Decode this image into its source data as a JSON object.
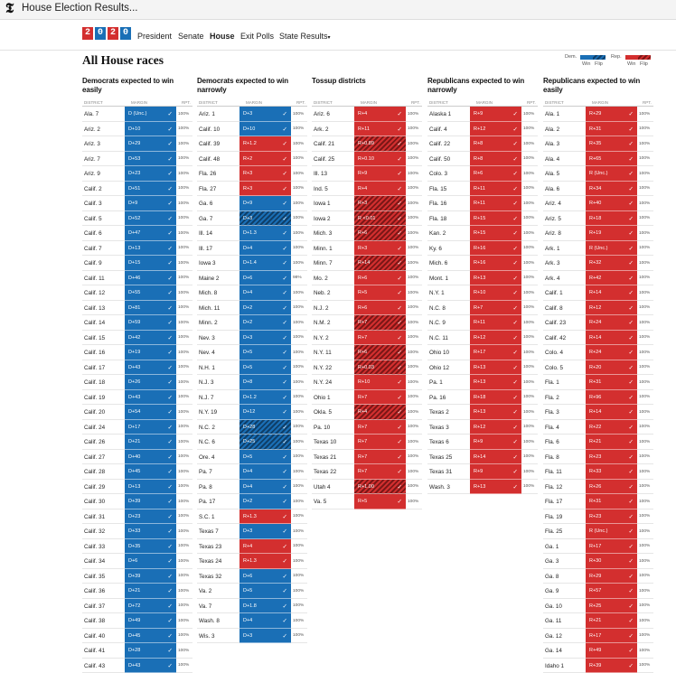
{
  "tab": {
    "title": "House Election Results..."
  },
  "logo": {
    "letters": [
      "2",
      "0",
      "2",
      "0"
    ],
    "colors": [
      "#d32f2f",
      "#1a6fb6",
      "#d32f2f",
      "#1a6fb6"
    ]
  },
  "nav": {
    "items": [
      {
        "label": "President",
        "active": false
      },
      {
        "label": "Senate",
        "active": false
      },
      {
        "label": "House",
        "active": true
      },
      {
        "label": "Exit Polls",
        "active": false
      },
      {
        "label": "State Results",
        "active": false,
        "chevron": true
      }
    ]
  },
  "page": {
    "title": "All House races"
  },
  "legend": {
    "dem": "Dem.",
    "rep": "Rep.",
    "win": "Win",
    "flip": "Flip",
    "dem_color": "#1a6fb6",
    "rep_color": "#d32f2f"
  },
  "table_headers": {
    "district": "DISTRICT",
    "margin": "MARGIN",
    "rpt": "RPT."
  },
  "columns": [
    {
      "heading": "Democrats expected to win easily",
      "rows": [
        [
          "Ala. 7",
          "D (Unc.)",
          "D",
          "100%"
        ],
        [
          "Ariz. 2",
          "D+10",
          "D",
          "100%"
        ],
        [
          "Ariz. 3",
          "D+29",
          "D",
          "100%"
        ],
        [
          "Ariz. 7",
          "D+53",
          "D",
          "100%"
        ],
        [
          "Ariz. 9",
          "D+23",
          "D",
          "100%"
        ],
        [
          "Calif. 2",
          "D+51",
          "D",
          "100%"
        ],
        [
          "Calif. 3",
          "D+9",
          "D",
          "100%"
        ],
        [
          "Calif. 5",
          "D+52",
          "D",
          "100%"
        ],
        [
          "Calif. 6",
          "D+47",
          "D",
          "100%"
        ],
        [
          "Calif. 7",
          "D+13",
          "D",
          "100%"
        ],
        [
          "Calif. 9",
          "D+15",
          "D",
          "100%"
        ],
        [
          "Calif. 11",
          "D+46",
          "D",
          "100%"
        ],
        [
          "Calif. 12",
          "D+55",
          "D",
          "100%"
        ],
        [
          "Calif. 13",
          "D+81",
          "D",
          "100%"
        ],
        [
          "Calif. 14",
          "D+59",
          "D",
          "100%"
        ],
        [
          "Calif. 15",
          "D+42",
          "D",
          "100%"
        ],
        [
          "Calif. 16",
          "D+19",
          "D",
          "100%"
        ],
        [
          "Calif. 17",
          "D+43",
          "D",
          "100%"
        ],
        [
          "Calif. 18",
          "D+26",
          "D",
          "100%"
        ],
        [
          "Calif. 19",
          "D+43",
          "D",
          "100%"
        ],
        [
          "Calif. 20",
          "D+54",
          "D",
          "100%"
        ],
        [
          "Calif. 24",
          "D+17",
          "D",
          "100%"
        ],
        [
          "Calif. 26",
          "D+21",
          "D",
          "100%"
        ],
        [
          "Calif. 27",
          "D+40",
          "D",
          "100%"
        ],
        [
          "Calif. 28",
          "D+45",
          "D",
          "100%"
        ],
        [
          "Calif. 29",
          "D+13",
          "D",
          "100%"
        ],
        [
          "Calif. 30",
          "D+39",
          "D",
          "100%"
        ],
        [
          "Calif. 31",
          "D+23",
          "D",
          "100%"
        ],
        [
          "Calif. 32",
          "D+33",
          "D",
          "100%"
        ],
        [
          "Calif. 33",
          "D+35",
          "D",
          "100%"
        ],
        [
          "Calif. 34",
          "D+6",
          "D",
          "100%"
        ],
        [
          "Calif. 35",
          "D+39",
          "D",
          "100%"
        ],
        [
          "Calif. 36",
          "D+21",
          "D",
          "100%"
        ],
        [
          "Calif. 37",
          "D+72",
          "D",
          "100%"
        ],
        [
          "Calif. 38",
          "D+49",
          "D",
          "100%"
        ],
        [
          "Calif. 40",
          "D+45",
          "D",
          "100%"
        ],
        [
          "Calif. 41",
          "D+28",
          "D",
          "100%"
        ],
        [
          "Calif. 43",
          "D+43",
          "D",
          "100%"
        ]
      ]
    },
    {
      "heading": "Democrats expected to win narrowly",
      "rows": [
        [
          "Ariz. 1",
          "D+3",
          "D",
          "100%"
        ],
        [
          "Calif. 10",
          "D+10",
          "D",
          "100%"
        ],
        [
          "Calif. 39",
          "R+1.2",
          "R",
          "100%"
        ],
        [
          "Calif. 48",
          "R+2",
          "R",
          "100%"
        ],
        [
          "Fla. 26",
          "R+3",
          "R",
          "100%"
        ],
        [
          "Fla. 27",
          "R+3",
          "R",
          "100%"
        ],
        [
          "Ga. 6",
          "D+9",
          "D",
          "100%"
        ],
        [
          "Ga. 7",
          "D+3",
          "DF",
          "100%"
        ],
        [
          "Ill. 14",
          "D+1.3",
          "D",
          "100%"
        ],
        [
          "Ill. 17",
          "D+4",
          "D",
          "100%"
        ],
        [
          "Iowa 3",
          "D+1.4",
          "D",
          "100%"
        ],
        [
          "Maine 2",
          "D+6",
          "D",
          "98%"
        ],
        [
          "Mich. 8",
          "D+4",
          "D",
          "100%"
        ],
        [
          "Mich. 11",
          "D+2",
          "D",
          "100%"
        ],
        [
          "Minn. 2",
          "D+2",
          "D",
          "100%"
        ],
        [
          "Nev. 3",
          "D+3",
          "D",
          "100%"
        ],
        [
          "Nev. 4",
          "D+5",
          "D",
          "100%"
        ],
        [
          "N.H. 1",
          "D+5",
          "D",
          "100%"
        ],
        [
          "N.J. 3",
          "D+8",
          "D",
          "100%"
        ],
        [
          "N.J. 7",
          "D+1.2",
          "D",
          "100%"
        ],
        [
          "N.Y. 19",
          "D+12",
          "D",
          "100%"
        ],
        [
          "N.C. 2",
          "D+28",
          "DF",
          "100%"
        ],
        [
          "N.C. 6",
          "D+25",
          "DF",
          "100%"
        ],
        [
          "Ore. 4",
          "D+5",
          "D",
          "100%"
        ],
        [
          "Pa. 7",
          "D+4",
          "D",
          "100%"
        ],
        [
          "Pa. 8",
          "D+4",
          "D",
          "100%"
        ],
        [
          "Pa. 17",
          "D+2",
          "D",
          "100%"
        ],
        [
          "S.C. 1",
          "R+1.3",
          "R",
          "100%"
        ],
        [
          "Texas 7",
          "D+3",
          "D",
          "100%"
        ],
        [
          "Texas 23",
          "R+4",
          "R",
          "100%"
        ],
        [
          "Texas 24",
          "R+1.3",
          "R",
          "100%"
        ],
        [
          "Texas 32",
          "D+6",
          "D",
          "100%"
        ],
        [
          "Va. 2",
          "D+5",
          "D",
          "100%"
        ],
        [
          "Va. 7",
          "D+1.8",
          "D",
          "100%"
        ],
        [
          "Wash. 8",
          "D+4",
          "D",
          "100%"
        ],
        [
          "Wis. 3",
          "D+3",
          "D",
          "100%"
        ]
      ]
    },
    {
      "heading": "Tossup districts",
      "rows": [
        [
          "Ariz. 6",
          "R+4",
          "R",
          "100%"
        ],
        [
          "Ark. 2",
          "R+11",
          "R",
          "100%"
        ],
        [
          "Calif. 21",
          "R+0.89",
          "RF",
          "100%"
        ],
        [
          "Calif. 25",
          "R+0.10",
          "R",
          "100%"
        ],
        [
          "Ill. 13",
          "R+9",
          "R",
          "100%"
        ],
        [
          "Ind. 5",
          "R+4",
          "R",
          "100%"
        ],
        [
          "Iowa 1",
          "R+3",
          "RF",
          "100%"
        ],
        [
          "Iowa 2",
          "R <0.01",
          "RF",
          "100%"
        ],
        [
          "Mich. 3",
          "R+6",
          "RF",
          "100%"
        ],
        [
          "Minn. 1",
          "R+3",
          "R",
          "100%"
        ],
        [
          "Minn. 7",
          "R+14",
          "RF",
          "100%"
        ],
        [
          "Mo. 2",
          "R+6",
          "R",
          "100%"
        ],
        [
          "Neb. 2",
          "R+5",
          "R",
          "100%"
        ],
        [
          "N.J. 2",
          "R+6",
          "R",
          "100%"
        ],
        [
          "N.M. 2",
          "R+7",
          "RF",
          "100%"
        ],
        [
          "N.Y. 2",
          "R+7",
          "R",
          "100%"
        ],
        [
          "N.Y. 11",
          "R+6",
          "RF",
          "100%"
        ],
        [
          "N.Y. 22",
          "R+0.03",
          "RF",
          "100%"
        ],
        [
          "N.Y. 24",
          "R+10",
          "R",
          "100%"
        ],
        [
          "Ohio 1",
          "R+7",
          "R",
          "100%"
        ],
        [
          "Okla. 5",
          "R+4",
          "RF",
          "100%"
        ],
        [
          "Pa. 10",
          "R+7",
          "R",
          "100%"
        ],
        [
          "Texas 10",
          "R+7",
          "R",
          "100%"
        ],
        [
          "Texas 21",
          "R+7",
          "R",
          "100%"
        ],
        [
          "Texas 22",
          "R+7",
          "R",
          "100%"
        ],
        [
          "Utah 4",
          "R+1.00",
          "RF",
          "100%"
        ],
        [
          "Va. 5",
          "R+5",
          "R",
          "100%"
        ]
      ]
    },
    {
      "heading": "Republicans expected to win narrowly",
      "rows": [
        [
          "Alaska 1",
          "R+9",
          "R",
          "100%"
        ],
        [
          "Calif. 4",
          "R+12",
          "R",
          "100%"
        ],
        [
          "Calif. 22",
          "R+8",
          "R",
          "100%"
        ],
        [
          "Calif. 50",
          "R+8",
          "R",
          "100%"
        ],
        [
          "Colo. 3",
          "R+6",
          "R",
          "100%"
        ],
        [
          "Fla. 15",
          "R+11",
          "R",
          "100%"
        ],
        [
          "Fla. 16",
          "R+11",
          "R",
          "100%"
        ],
        [
          "Fla. 18",
          "R+15",
          "R",
          "100%"
        ],
        [
          "Kan. 2",
          "R+15",
          "R",
          "100%"
        ],
        [
          "Ky. 6",
          "R+16",
          "R",
          "100%"
        ],
        [
          "Mich. 6",
          "R+16",
          "R",
          "100%"
        ],
        [
          "Mont. 1",
          "R+13",
          "R",
          "100%"
        ],
        [
          "N.Y. 1",
          "R+10",
          "R",
          "100%"
        ],
        [
          "N.C. 8",
          "R+7",
          "R",
          "100%"
        ],
        [
          "N.C. 9",
          "R+11",
          "R",
          "100%"
        ],
        [
          "N.C. 11",
          "R+12",
          "R",
          "100%"
        ],
        [
          "Ohio 10",
          "R+17",
          "R",
          "100%"
        ],
        [
          "Ohio 12",
          "R+13",
          "R",
          "100%"
        ],
        [
          "Pa. 1",
          "R+13",
          "R",
          "100%"
        ],
        [
          "Pa. 16",
          "R+18",
          "R",
          "100%"
        ],
        [
          "Texas 2",
          "R+13",
          "R",
          "100%"
        ],
        [
          "Texas 3",
          "R+12",
          "R",
          "100%"
        ],
        [
          "Texas 6",
          "R+9",
          "R",
          "100%"
        ],
        [
          "Texas 25",
          "R+14",
          "R",
          "100%"
        ],
        [
          "Texas 31",
          "R+9",
          "R",
          "100%"
        ],
        [
          "Wash. 3",
          "R+13",
          "R",
          "100%"
        ]
      ]
    },
    {
      "heading": "Republicans expected to win easily",
      "rows": [
        [
          "Ala. 1",
          "R+29",
          "R",
          "100%"
        ],
        [
          "Ala. 2",
          "R+31",
          "R",
          "100%"
        ],
        [
          "Ala. 3",
          "R+35",
          "R",
          "100%"
        ],
        [
          "Ala. 4",
          "R+65",
          "R",
          "100%"
        ],
        [
          "Ala. 5",
          "R (Unc.)",
          "R",
          "100%"
        ],
        [
          "Ala. 6",
          "R+34",
          "R",
          "100%"
        ],
        [
          "Ariz. 4",
          "R+40",
          "R",
          "100%"
        ],
        [
          "Ariz. 5",
          "R+18",
          "R",
          "100%"
        ],
        [
          "Ariz. 8",
          "R+19",
          "R",
          "100%"
        ],
        [
          "Ark. 1",
          "R (Unc.)",
          "R",
          "100%"
        ],
        [
          "Ark. 3",
          "R+32",
          "R",
          "100%"
        ],
        [
          "Ark. 4",
          "R+42",
          "R",
          "100%"
        ],
        [
          "Calif. 1",
          "R+14",
          "R",
          "100%"
        ],
        [
          "Calif. 8",
          "R+12",
          "R",
          "100%"
        ],
        [
          "Calif. 23",
          "R+24",
          "R",
          "100%"
        ],
        [
          "Calif. 42",
          "R+14",
          "R",
          "100%"
        ],
        [
          "Colo. 4",
          "R+24",
          "R",
          "100%"
        ],
        [
          "Colo. 5",
          "R+20",
          "R",
          "100%"
        ],
        [
          "Fla. 1",
          "R+31",
          "R",
          "100%"
        ],
        [
          "Fla. 2",
          "R+96",
          "R",
          "100%"
        ],
        [
          "Fla. 3",
          "R+14",
          "R",
          "100%"
        ],
        [
          "Fla. 4",
          "R+22",
          "R",
          "100%"
        ],
        [
          "Fla. 6",
          "R+21",
          "R",
          "100%"
        ],
        [
          "Fla. 8",
          "R+23",
          "R",
          "100%"
        ],
        [
          "Fla. 11",
          "R+33",
          "R",
          "100%"
        ],
        [
          "Fla. 12",
          "R+26",
          "R",
          "100%"
        ],
        [
          "Fla. 17",
          "R+31",
          "R",
          "100%"
        ],
        [
          "Fla. 19",
          "R+23",
          "R",
          "100%"
        ],
        [
          "Fla. 25",
          "R (Unc.)",
          "R",
          "100%"
        ],
        [
          "Ga. 1",
          "R+17",
          "R",
          "100%"
        ],
        [
          "Ga. 3",
          "R+30",
          "R",
          "100%"
        ],
        [
          "Ga. 8",
          "R+29",
          "R",
          "100%"
        ],
        [
          "Ga. 9",
          "R+57",
          "R",
          "100%"
        ],
        [
          "Ga. 10",
          "R+25",
          "R",
          "100%"
        ],
        [
          "Ga. 11",
          "R+21",
          "R",
          "100%"
        ],
        [
          "Ga. 12",
          "R+17",
          "R",
          "100%"
        ],
        [
          "Ga. 14",
          "R+49",
          "R",
          "100%"
        ],
        [
          "Idaho 1",
          "R+39",
          "R",
          "100%"
        ]
      ]
    }
  ]
}
